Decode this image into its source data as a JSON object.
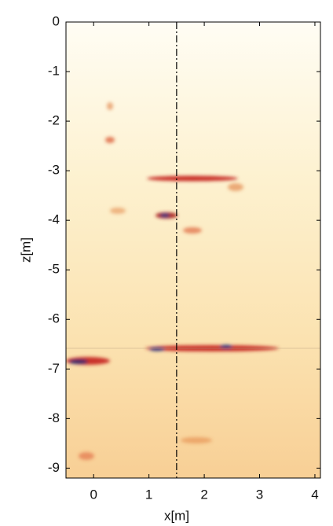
{
  "chart_data": {
    "type": "heatmap",
    "xlabel": "x[m]",
    "ylabel": "z[m]",
    "xlim": [
      -0.5,
      4.1
    ],
    "ylim": [
      -9.2,
      0
    ],
    "xticks": [
      0,
      1,
      2,
      3,
      4
    ],
    "yticks": [
      0,
      -1,
      -2,
      -3,
      -4,
      -5,
      -6,
      -7,
      -8,
      -9
    ],
    "vline_x": 1.5
  }
}
